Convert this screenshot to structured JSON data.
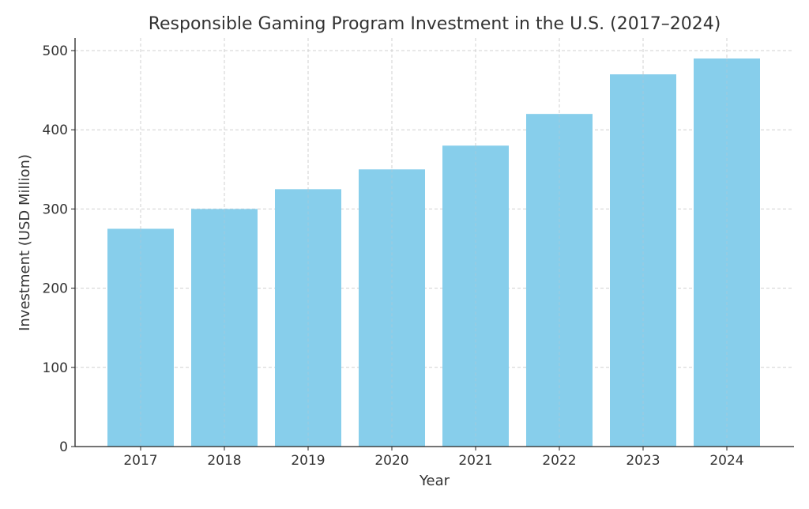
{
  "chart_data": {
    "type": "bar",
    "title": "Responsible Gaming Program Investment in the U.S. (2017–2024)",
    "xlabel": "Year",
    "ylabel": "Investment (USD Million)",
    "categories": [
      "2017",
      "2018",
      "2019",
      "2020",
      "2021",
      "2022",
      "2023",
      "2024"
    ],
    "values": [
      275,
      300,
      325,
      350,
      380,
      420,
      470,
      490
    ],
    "ylim": [
      0,
      515
    ],
    "yticks": [
      0,
      100,
      200,
      300,
      400,
      500
    ],
    "grid": true,
    "bar_color": "#87ceeb"
  }
}
